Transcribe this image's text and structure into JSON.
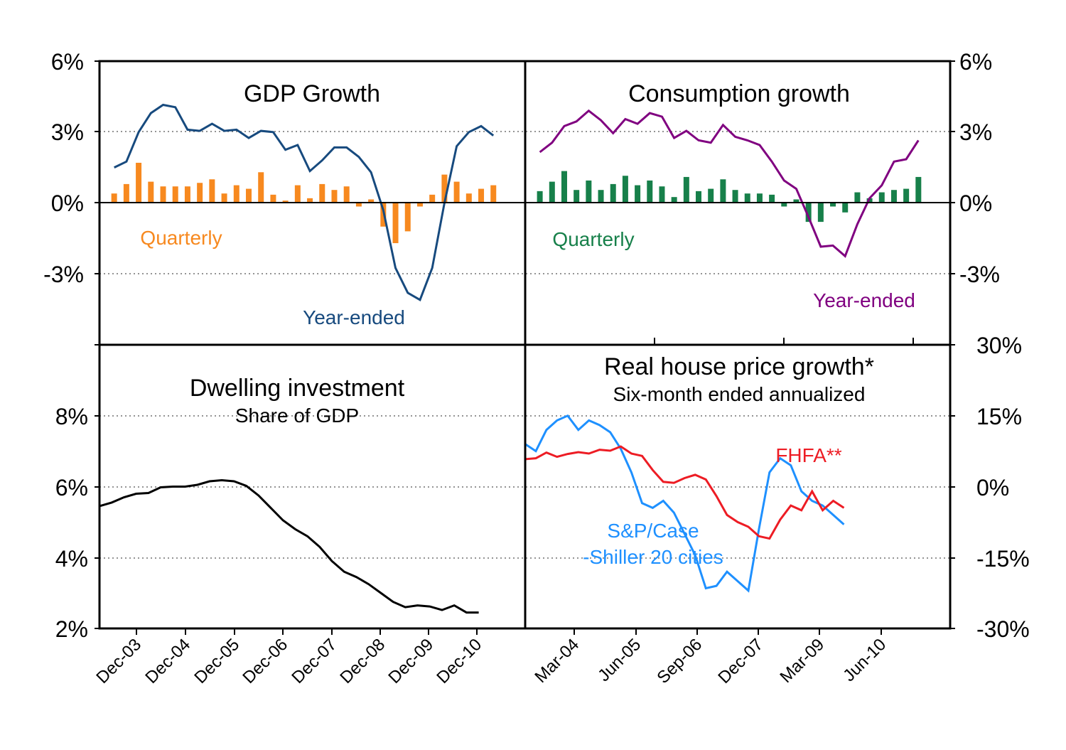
{
  "colors": {
    "gdp_quarterly": "#F7891F",
    "gdp_year_ended": "#174A7E",
    "cons_quarterly": "#17804A",
    "cons_year_ended": "#800080",
    "dwelling": "#000000",
    "fhfa": "#ED1C24",
    "case_shiller": "#1E90FF"
  },
  "chart_data": [
    {
      "id": "gdp",
      "type": "bar+line",
      "title": "GDP Growth",
      "y_tick_labels": [
        "6%",
        "3%",
        "0%",
        "-3%"
      ],
      "ylim": [
        -6,
        6
      ],
      "x_range": [
        2003.2,
        2011.9
      ],
      "series": [
        {
          "name": "Quarterly",
          "kind": "bar",
          "x_start": 2003.5,
          "x_step": 0.25,
          "values": [
            0.4,
            0.8,
            1.7,
            0.9,
            0.7,
            0.7,
            0.7,
            0.85,
            1.0,
            0.4,
            0.75,
            0.6,
            1.3,
            0.35,
            0.1,
            0.75,
            0.2,
            0.8,
            0.55,
            0.7,
            -0.15,
            0.15,
            -1.0,
            -1.7,
            -1.2,
            -0.15,
            0.35,
            1.2,
            0.9,
            0.4,
            0.6,
            0.75
          ]
        },
        {
          "name": "Year-ended",
          "kind": "line",
          "x_start": 2003.5,
          "x_step": 0.25,
          "values": [
            1.5,
            1.75,
            3.0,
            3.8,
            4.15,
            4.05,
            3.1,
            3.05,
            3.35,
            3.05,
            3.1,
            2.75,
            3.05,
            3.0,
            2.25,
            2.45,
            1.35,
            1.8,
            2.35,
            2.35,
            1.95,
            1.3,
            -0.3,
            -2.75,
            -3.8,
            -4.1,
            -2.75,
            0.0,
            2.4,
            3.0,
            3.25,
            2.85
          ]
        }
      ]
    },
    {
      "id": "consumption",
      "type": "bar+line",
      "title": "Consumption growth",
      "y_tick_labels": [
        "6%",
        "3%",
        "0%",
        "-3%"
      ],
      "ylim": [
        -6,
        6
      ],
      "x_range": [
        2003.2,
        2011.9
      ],
      "series": [
        {
          "name": "Quarterly",
          "kind": "bar",
          "x_start": 2003.5,
          "x_step": 0.25,
          "values": [
            0.5,
            0.9,
            1.35,
            0.55,
            0.95,
            0.55,
            0.8,
            1.15,
            0.75,
            0.95,
            0.7,
            0.25,
            1.1,
            0.5,
            0.6,
            1.0,
            0.55,
            0.4,
            0.4,
            0.35,
            -0.15,
            0.15,
            -0.8,
            -0.8,
            -0.15,
            -0.4,
            0.45,
            0.2,
            0.45,
            0.55,
            0.6,
            1.1
          ]
        },
        {
          "name": "Year-ended",
          "kind": "line",
          "x_start": 2003.5,
          "x_step": 0.25,
          "values": [
            2.15,
            2.55,
            3.25,
            3.45,
            3.9,
            3.5,
            2.95,
            3.55,
            3.35,
            3.8,
            3.65,
            2.75,
            3.05,
            2.65,
            2.55,
            3.3,
            2.8,
            2.65,
            2.45,
            1.75,
            0.95,
            0.6,
            -0.6,
            -1.85,
            -1.8,
            -2.25,
            -0.9,
            0.2,
            0.75,
            1.75,
            1.85,
            2.65
          ]
        }
      ]
    },
    {
      "id": "dwelling",
      "type": "line",
      "title": "Dwelling investment",
      "subtitle": "Share of GDP",
      "y_tick_labels": [
        "8%",
        "6%",
        "4%",
        "2%"
      ],
      "ylim": [
        2,
        10
      ],
      "x_tick_labels": [
        "Dec-03",
        "Dec-04",
        "Dec-05",
        "Dec-06",
        "Dec-07",
        "Dec-08",
        "Dec-09",
        "Dec-10"
      ],
      "x_range": [
        2003.2,
        2011.9
      ],
      "series": [
        {
          "name": "",
          "kind": "line",
          "x_start": 2003.2,
          "x_step": 0.25,
          "values": [
            5.45,
            5.55,
            5.7,
            5.8,
            5.82,
            5.98,
            6.0,
            6.0,
            6.05,
            6.15,
            6.18,
            6.15,
            6.02,
            5.75,
            5.4,
            5.05,
            4.8,
            4.6,
            4.3,
            3.9,
            3.6,
            3.45,
            3.25,
            3.0,
            2.75,
            2.6,
            2.65,
            2.62,
            2.52,
            2.65,
            2.45,
            2.45
          ]
        }
      ]
    },
    {
      "id": "house_prices",
      "type": "line",
      "title": "Real house price growth*",
      "subtitle": "Six-month ended annualized",
      "y_tick_labels": [
        "30%",
        "15%",
        "0%",
        "-15%",
        "-30%"
      ],
      "ylim": [
        -30,
        30
      ],
      "x_tick_labels": [
        "Mar-04",
        "Jun-05",
        "Sep-06",
        "Dec-07",
        "Mar-09",
        "Jun-10"
      ],
      "x_range": [
        2003.0,
        2011.0
      ],
      "series": [
        {
          "name": "FHFA**",
          "kind": "line",
          "x_start": 2003.0,
          "x_step": 0.2,
          "values": [
            5.8,
            6.0,
            7.2,
            6.3,
            6.9,
            7.3,
            7.0,
            7.8,
            7.6,
            8.5,
            7.0,
            6.5,
            3.5,
            1.0,
            0.8,
            1.8,
            2.5,
            1.5,
            -2.0,
            -6.0,
            -7.5,
            -8.5,
            -10.5,
            -11.0,
            -7.0,
            -4.0,
            -5.0,
            -1.0,
            -5.0,
            -3.0,
            -4.5
          ]
        },
        {
          "name": "S&P/Case‑Shiller 20 cities",
          "kind": "line",
          "x_start": 2003.0,
          "x_step": 0.2,
          "values": [
            9.0,
            7.5,
            12.0,
            14.0,
            15.0,
            12.0,
            14.0,
            13.0,
            11.5,
            8.0,
            3.0,
            -3.5,
            -4.5,
            -3.0,
            -5.5,
            -10.0,
            -14.5,
            -21.5,
            -21.0,
            -18.0,
            -20.0,
            -22.0,
            -9.0,
            3.0,
            6.0,
            4.5,
            -1.0,
            -3.0,
            -4.0,
            -6.0,
            -8.0
          ]
        }
      ]
    }
  ],
  "labels": {
    "gdp_quarterly": "Quarterly",
    "gdp_year_ended": "Year-ended",
    "cons_quarterly": "Quarterly",
    "cons_year_ended": "Year-ended",
    "fhfa": "FHFA**",
    "cs_line1": "S&P/Case",
    "cs_line2": "-Shiller 20 cities"
  }
}
